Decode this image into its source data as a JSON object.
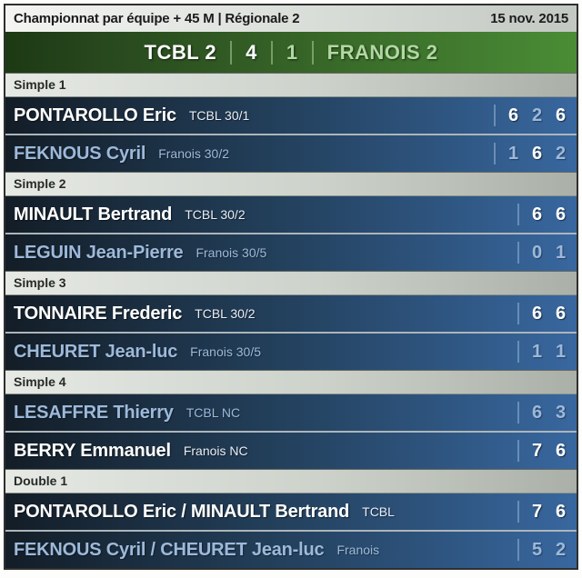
{
  "header": {
    "title": "Championnat par équipe + 45 M | Régionale 2",
    "date": "15 nov. 2015"
  },
  "scoreboard": {
    "home_team": "TCBL 2",
    "home_score": "4",
    "away_score": "1",
    "away_team": "FRANOIS 2"
  },
  "colors": {
    "winner_text": "#ffffff",
    "loser_text": "#9db9da",
    "row_gradient_start": "#131d27",
    "row_gradient_end": "#38679f",
    "green_gradient_start": "#1c3914",
    "green_gradient_end": "#4a8c35",
    "pale_green_text": "#b2d8a2"
  },
  "sections": [
    {
      "label": "Simple 1",
      "rows": [
        {
          "name": "PONTAROLLO Eric",
          "club": "TCBL 30/1",
          "winner": true,
          "sets": [
            {
              "value": "6",
              "won": true
            },
            {
              "value": "2",
              "won": false
            },
            {
              "value": "6",
              "won": true
            }
          ]
        },
        {
          "name": "FEKNOUS Cyril",
          "club": "Franois 30/2",
          "winner": false,
          "sets": [
            {
              "value": "1",
              "won": false
            },
            {
              "value": "6",
              "won": true
            },
            {
              "value": "2",
              "won": false
            }
          ]
        }
      ]
    },
    {
      "label": "Simple 2",
      "rows": [
        {
          "name": "MINAULT Bertrand",
          "club": "TCBL 30/2",
          "winner": true,
          "sets": [
            {
              "value": "6",
              "won": true
            },
            {
              "value": "6",
              "won": true
            }
          ]
        },
        {
          "name": "LEGUIN Jean-Pierre",
          "club": "Franois 30/5",
          "winner": false,
          "sets": [
            {
              "value": "0",
              "won": false
            },
            {
              "value": "1",
              "won": false
            }
          ]
        }
      ]
    },
    {
      "label": "Simple 3",
      "rows": [
        {
          "name": "TONNAIRE Frederic",
          "club": "TCBL 30/2",
          "winner": true,
          "sets": [
            {
              "value": "6",
              "won": true
            },
            {
              "value": "6",
              "won": true
            }
          ]
        },
        {
          "name": "CHEURET Jean-luc",
          "club": "Franois 30/5",
          "winner": false,
          "sets": [
            {
              "value": "1",
              "won": false
            },
            {
              "value": "1",
              "won": false
            }
          ]
        }
      ]
    },
    {
      "label": "Simple 4",
      "rows": [
        {
          "name": "LESAFFRE Thierry",
          "club": "TCBL NC",
          "winner": false,
          "sets": [
            {
              "value": "6",
              "won": false
            },
            {
              "value": "3",
              "won": false
            }
          ]
        },
        {
          "name": "BERRY Emmanuel",
          "club": "Franois NC",
          "winner": true,
          "sets": [
            {
              "value": "7",
              "won": true
            },
            {
              "value": "6",
              "won": true
            }
          ]
        }
      ]
    },
    {
      "label": "Double 1",
      "rows": [
        {
          "name": "PONTAROLLO Eric / MINAULT Bertrand",
          "club": "TCBL",
          "winner": true,
          "sets": [
            {
              "value": "7",
              "won": true
            },
            {
              "value": "6",
              "won": true
            }
          ]
        },
        {
          "name": "FEKNOUS Cyril / CHEURET Jean-luc",
          "club": "Franois",
          "winner": false,
          "sets": [
            {
              "value": "5",
              "won": false
            },
            {
              "value": "2",
              "won": false
            }
          ]
        }
      ]
    }
  ]
}
